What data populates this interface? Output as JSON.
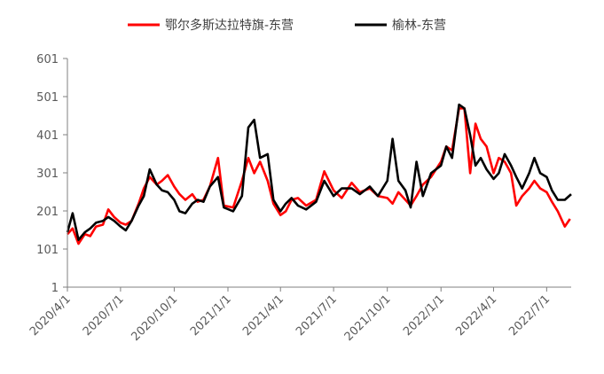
{
  "chart_data": {
    "type": "line",
    "title": "",
    "xlabel": "",
    "ylabel": "",
    "ylim": [
      1,
      601
    ],
    "yticks": [
      1,
      101,
      201,
      301,
      401,
      501,
      601
    ],
    "xlim": [
      "2020-04-01",
      "2022-08-12"
    ],
    "xtick_labels": [
      "2020/4/1",
      "2020/7/1",
      "2020/10/1",
      "2021/1/1",
      "2021/4/1",
      "2021/7/1",
      "2021/10/1",
      "2022/1/1",
      "2022/4/1",
      "2022/7/1"
    ],
    "xtick_dates": [
      "2020-04-01",
      "2020-07-01",
      "2020-10-01",
      "2021-01-01",
      "2021-04-01",
      "2021-07-01",
      "2021-10-01",
      "2022-01-01",
      "2022-04-01",
      "2022-07-01"
    ],
    "grid": false,
    "legend_position": "top-center",
    "series": [
      {
        "name": "鄂尔多斯达拉特旗-东营",
        "color": "#ff0000",
        "points": [
          [
            "2020-04-01",
            140
          ],
          [
            "2020-04-10",
            155
          ],
          [
            "2020-04-20",
            115
          ],
          [
            "2020-05-01",
            140
          ],
          [
            "2020-05-10",
            135
          ],
          [
            "2020-05-20",
            160
          ],
          [
            "2020-06-01",
            165
          ],
          [
            "2020-06-10",
            205
          ],
          [
            "2020-06-20",
            185
          ],
          [
            "2020-07-01",
            170
          ],
          [
            "2020-07-10",
            165
          ],
          [
            "2020-07-20",
            175
          ],
          [
            "2020-08-01",
            220
          ],
          [
            "2020-08-10",
            260
          ],
          [
            "2020-08-20",
            290
          ],
          [
            "2020-09-01",
            270
          ],
          [
            "2020-09-10",
            280
          ],
          [
            "2020-09-20",
            295
          ],
          [
            "2020-10-01",
            265
          ],
          [
            "2020-10-10",
            245
          ],
          [
            "2020-10-20",
            230
          ],
          [
            "2020-11-01",
            245
          ],
          [
            "2020-11-10",
            225
          ],
          [
            "2020-11-20",
            230
          ],
          [
            "2020-12-01",
            265
          ],
          [
            "2020-12-15",
            340
          ],
          [
            "2020-12-25",
            215
          ],
          [
            "2021-01-10",
            210
          ],
          [
            "2021-01-25",
            280
          ],
          [
            "2021-02-05",
            340
          ],
          [
            "2021-02-15",
            300
          ],
          [
            "2021-02-25",
            330
          ],
          [
            "2021-03-10",
            280
          ],
          [
            "2021-03-20",
            220
          ],
          [
            "2021-04-01",
            190
          ],
          [
            "2021-04-10",
            200
          ],
          [
            "2021-04-20",
            230
          ],
          [
            "2021-05-01",
            235
          ],
          [
            "2021-05-15",
            215
          ],
          [
            "2021-06-01",
            230
          ],
          [
            "2021-06-15",
            305
          ],
          [
            "2021-07-01",
            255
          ],
          [
            "2021-07-15",
            235
          ],
          [
            "2021-08-01",
            275
          ],
          [
            "2021-08-15",
            250
          ],
          [
            "2021-09-01",
            260
          ],
          [
            "2021-09-15",
            240
          ],
          [
            "2021-10-01",
            235
          ],
          [
            "2021-10-10",
            220
          ],
          [
            "2021-10-20",
            250
          ],
          [
            "2021-11-01",
            230
          ],
          [
            "2021-11-10",
            215
          ],
          [
            "2021-11-20",
            240
          ],
          [
            "2021-12-01",
            270
          ],
          [
            "2021-12-15",
            290
          ],
          [
            "2022-01-01",
            330
          ],
          [
            "2022-01-10",
            370
          ],
          [
            "2022-01-20",
            360
          ],
          [
            "2022-02-01",
            470
          ],
          [
            "2022-02-10",
            470
          ],
          [
            "2022-02-20",
            300
          ],
          [
            "2022-03-01",
            430
          ],
          [
            "2022-03-10",
            390
          ],
          [
            "2022-03-20",
            370
          ],
          [
            "2022-04-01",
            300
          ],
          [
            "2022-04-10",
            340
          ],
          [
            "2022-04-20",
            330
          ],
          [
            "2022-05-01",
            300
          ],
          [
            "2022-05-10",
            215
          ],
          [
            "2022-05-20",
            240
          ],
          [
            "2022-06-01",
            260
          ],
          [
            "2022-06-10",
            280
          ],
          [
            "2022-06-20",
            260
          ],
          [
            "2022-07-01",
            250
          ],
          [
            "2022-07-10",
            225
          ],
          [
            "2022-07-20",
            200
          ],
          [
            "2022-08-01",
            160
          ],
          [
            "2022-08-10",
            180
          ]
        ]
      },
      {
        "name": "榆林-东营",
        "color": "#000000",
        "points": [
          [
            "2020-04-01",
            145
          ],
          [
            "2020-04-10",
            195
          ],
          [
            "2020-04-20",
            125
          ],
          [
            "2020-05-01",
            145
          ],
          [
            "2020-05-10",
            155
          ],
          [
            "2020-05-20",
            170
          ],
          [
            "2020-06-01",
            175
          ],
          [
            "2020-06-10",
            185
          ],
          [
            "2020-06-20",
            175
          ],
          [
            "2020-07-01",
            160
          ],
          [
            "2020-07-10",
            150
          ],
          [
            "2020-07-20",
            175
          ],
          [
            "2020-08-01",
            215
          ],
          [
            "2020-08-10",
            240
          ],
          [
            "2020-08-20",
            310
          ],
          [
            "2020-09-01",
            270
          ],
          [
            "2020-09-10",
            255
          ],
          [
            "2020-09-20",
            250
          ],
          [
            "2020-10-01",
            230
          ],
          [
            "2020-10-10",
            200
          ],
          [
            "2020-10-20",
            195
          ],
          [
            "2020-11-01",
            220
          ],
          [
            "2020-11-10",
            230
          ],
          [
            "2020-11-20",
            225
          ],
          [
            "2020-12-01",
            265
          ],
          [
            "2020-12-15",
            290
          ],
          [
            "2020-12-25",
            210
          ],
          [
            "2021-01-10",
            200
          ],
          [
            "2021-01-25",
            240
          ],
          [
            "2021-02-05",
            420
          ],
          [
            "2021-02-15",
            440
          ],
          [
            "2021-02-25",
            340
          ],
          [
            "2021-03-10",
            350
          ],
          [
            "2021-03-20",
            230
          ],
          [
            "2021-04-01",
            200
          ],
          [
            "2021-04-10",
            220
          ],
          [
            "2021-04-20",
            235
          ],
          [
            "2021-05-01",
            215
          ],
          [
            "2021-05-15",
            205
          ],
          [
            "2021-06-01",
            225
          ],
          [
            "2021-06-15",
            280
          ],
          [
            "2021-07-01",
            240
          ],
          [
            "2021-07-15",
            260
          ],
          [
            "2021-08-01",
            260
          ],
          [
            "2021-08-15",
            245
          ],
          [
            "2021-09-01",
            265
          ],
          [
            "2021-09-15",
            240
          ],
          [
            "2021-10-01",
            280
          ],
          [
            "2021-10-10",
            390
          ],
          [
            "2021-10-20",
            280
          ],
          [
            "2021-11-01",
            255
          ],
          [
            "2021-11-10",
            210
          ],
          [
            "2021-11-20",
            330
          ],
          [
            "2021-12-01",
            240
          ],
          [
            "2021-12-15",
            300
          ],
          [
            "2022-01-01",
            320
          ],
          [
            "2022-01-10",
            370
          ],
          [
            "2022-01-20",
            340
          ],
          [
            "2022-02-01",
            480
          ],
          [
            "2022-02-10",
            470
          ],
          [
            "2022-02-20",
            400
          ],
          [
            "2022-03-01",
            320
          ],
          [
            "2022-03-10",
            340
          ],
          [
            "2022-03-20",
            310
          ],
          [
            "2022-04-01",
            285
          ],
          [
            "2022-04-10",
            300
          ],
          [
            "2022-04-20",
            350
          ],
          [
            "2022-05-01",
            320
          ],
          [
            "2022-05-10",
            290
          ],
          [
            "2022-05-20",
            260
          ],
          [
            "2022-06-01",
            300
          ],
          [
            "2022-06-10",
            340
          ],
          [
            "2022-06-20",
            300
          ],
          [
            "2022-07-01",
            290
          ],
          [
            "2022-07-10",
            255
          ],
          [
            "2022-07-20",
            230
          ],
          [
            "2022-08-01",
            230
          ],
          [
            "2022-08-12",
            245
          ]
        ]
      }
    ]
  }
}
